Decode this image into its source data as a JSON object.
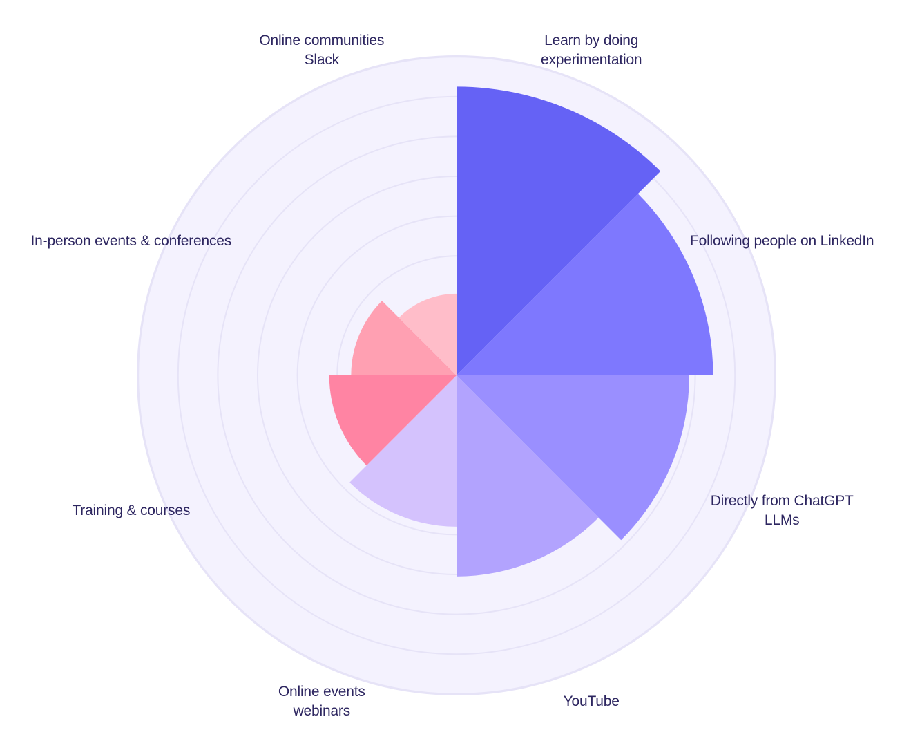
{
  "chart_data": {
    "type": "polar-area",
    "title": "",
    "categories": [
      {
        "label_lines": [
          "Learn by doing",
          "experimentation"
        ],
        "value": 7.25,
        "color": "#6562F5"
      },
      {
        "label_lines": [
          "Following people on LinkedIn"
        ],
        "value": 6.45,
        "color": "#7E78FE"
      },
      {
        "label_lines": [
          "Directly from ChatGPT",
          "LLMs"
        ],
        "value": 5.85,
        "color": "#9A8FFF"
      },
      {
        "label_lines": [
          "YouTube"
        ],
        "value": 5.05,
        "color": "#B2A3FE"
      },
      {
        "label_lines": [
          "Online events",
          "webinars"
        ],
        "value": 3.8,
        "color": "#D4C2FD"
      },
      {
        "label_lines": [
          "Training & courses"
        ],
        "value": 3.2,
        "color": "#FF84A3"
      },
      {
        "label_lines": [
          "In-person events & conferences"
        ],
        "value": 2.65,
        "color": "#FFA0B2"
      },
      {
        "label_lines": [
          "Online communities",
          "Slack"
        ],
        "value": 2.05,
        "color": "#FFBDC9"
      }
    ],
    "radial_max": 8,
    "rings": [
      1,
      2,
      3,
      4,
      5,
      6,
      7,
      8
    ],
    "grid": true,
    "background_color": "#F4F2FE",
    "grid_color": "#E6E3F7",
    "label_color": "#2D2660"
  }
}
